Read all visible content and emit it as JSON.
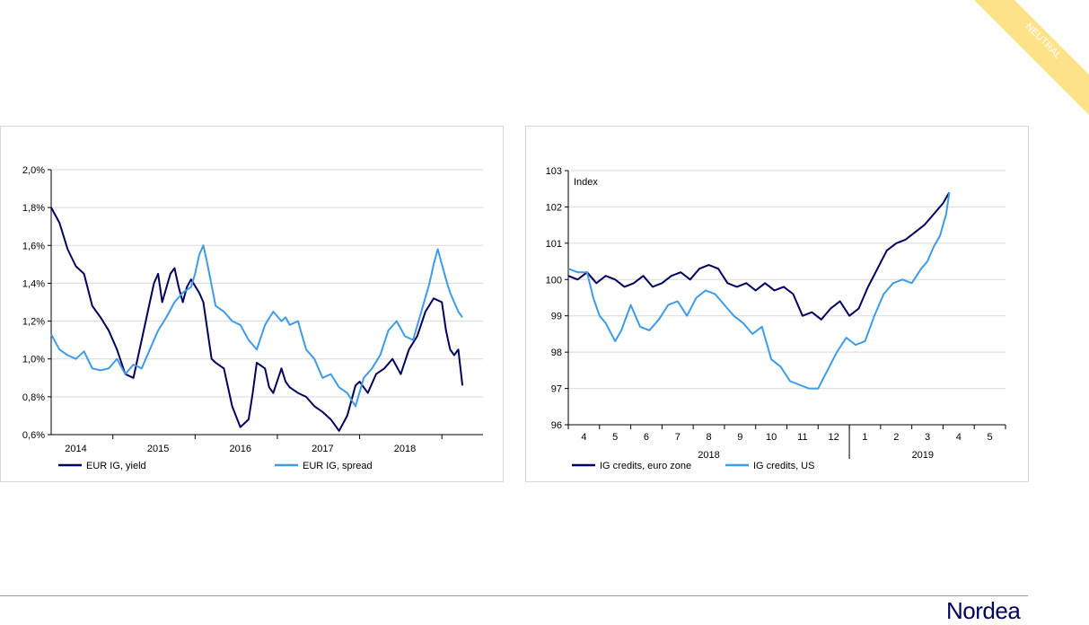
{
  "badge": {
    "text": "NEUTRAL",
    "color": "#ffe28a"
  },
  "logo": {
    "text": "Nordea",
    "color": "#00005e"
  },
  "colors": {
    "dark": "#00005e",
    "light": "#3f9be6",
    "grid": "#d9d9d9"
  },
  "chart_data": [
    {
      "type": "line",
      "title": "",
      "ylabel": "",
      "xlabel": "",
      "ylim": [
        0.6,
        2.0
      ],
      "y_ticks": [
        0.6,
        0.8,
        1.0,
        1.2,
        1.4,
        1.6,
        1.8,
        2.0
      ],
      "y_tick_labels": [
        "0,6%",
        "0,8%",
        "1,0%",
        "1,2%",
        "1,4%",
        "1,6%",
        "1,8%",
        "2,0%"
      ],
      "xlim": [
        2013.75,
        2019.0
      ],
      "x_tick_labels": [
        "2014",
        "2015",
        "2016",
        "2017",
        "2018"
      ],
      "grid": true,
      "legend": "bottom",
      "series": [
        {
          "name": "EUR IG, yield",
          "color": "#00005e",
          "x": [
            2013.75,
            2013.85,
            2013.95,
            2014.05,
            2014.15,
            2014.25,
            2014.35,
            2014.45,
            2014.55,
            2014.65,
            2014.75,
            2014.85,
            2014.95,
            2015.0,
            2015.05,
            2015.1,
            2015.2,
            2015.25,
            2015.3,
            2015.35,
            2015.4,
            2015.45,
            2015.55,
            2015.6,
            2015.65,
            2015.7,
            2015.75,
            2015.85,
            2015.95,
            2016.05,
            2016.1,
            2016.15,
            2016.2,
            2016.25,
            2016.35,
            2016.4,
            2016.45,
            2016.55,
            2016.6,
            2016.65,
            2016.75,
            2016.85,
            2016.95,
            2017.05,
            2017.15,
            2017.25,
            2017.35,
            2017.4,
            2017.45,
            2017.5,
            2017.55,
            2017.6,
            2017.7,
            2017.8,
            2017.9,
            2018.0,
            2018.1,
            2018.2,
            2018.3,
            2018.4,
            2018.5,
            2018.55,
            2018.6,
            2018.65,
            2018.7,
            2018.75
          ],
          "values": [
            1.8,
            1.72,
            1.58,
            1.49,
            1.45,
            1.28,
            1.22,
            1.15,
            1.05,
            0.92,
            0.9,
            1.1,
            1.3,
            1.4,
            1.45,
            1.3,
            1.45,
            1.48,
            1.38,
            1.3,
            1.38,
            1.42,
            1.35,
            1.3,
            1.15,
            1.0,
            0.98,
            0.95,
            0.75,
            0.64,
            0.66,
            0.68,
            0.82,
            0.98,
            0.95,
            0.85,
            0.82,
            0.95,
            0.88,
            0.85,
            0.82,
            0.8,
            0.75,
            0.72,
            0.68,
            0.62,
            0.7,
            0.78,
            0.86,
            0.88,
            0.85,
            0.82,
            0.92,
            0.95,
            1.0,
            0.92,
            1.05,
            1.12,
            1.25,
            1.32,
            1.3,
            1.15,
            1.05,
            1.02,
            1.05,
            0.86
          ]
        },
        {
          "name": "EUR IG, spread",
          "color": "#3f9be6",
          "x": [
            2013.75,
            2013.85,
            2013.95,
            2014.05,
            2014.15,
            2014.25,
            2014.35,
            2014.45,
            2014.55,
            2014.65,
            2014.75,
            2014.85,
            2014.95,
            2015.05,
            2015.15,
            2015.25,
            2015.35,
            2015.45,
            2015.5,
            2015.55,
            2015.6,
            2015.65,
            2015.75,
            2015.85,
            2015.95,
            2016.05,
            2016.15,
            2016.25,
            2016.35,
            2016.45,
            2016.55,
            2016.6,
            2016.65,
            2016.75,
            2016.85,
            2016.95,
            2017.05,
            2017.15,
            2017.25,
            2017.35,
            2017.45,
            2017.55,
            2017.65,
            2017.75,
            2017.85,
            2017.95,
            2018.05,
            2018.15,
            2018.25,
            2018.35,
            2018.4,
            2018.45,
            2018.55,
            2018.6,
            2018.65,
            2018.7,
            2018.75
          ],
          "values": [
            1.13,
            1.05,
            1.02,
            1.0,
            1.04,
            0.95,
            0.94,
            0.95,
            1.0,
            0.92,
            0.97,
            0.95,
            1.05,
            1.15,
            1.22,
            1.3,
            1.35,
            1.38,
            1.45,
            1.55,
            1.6,
            1.5,
            1.28,
            1.25,
            1.2,
            1.18,
            1.1,
            1.05,
            1.18,
            1.25,
            1.2,
            1.22,
            1.18,
            1.2,
            1.05,
            1.0,
            0.9,
            0.92,
            0.85,
            0.82,
            0.75,
            0.9,
            0.95,
            1.02,
            1.15,
            1.2,
            1.12,
            1.1,
            1.25,
            1.4,
            1.5,
            1.58,
            1.42,
            1.35,
            1.3,
            1.25,
            1.22
          ]
        }
      ]
    },
    {
      "type": "line",
      "title": "",
      "ylabel": "Index",
      "xlabel": "",
      "ylim": [
        96,
        103
      ],
      "y_ticks": [
        96,
        97,
        98,
        99,
        100,
        101,
        102,
        103
      ],
      "y_tick_labels": [
        "96",
        "97",
        "98",
        "99",
        "100",
        "101",
        "102",
        "103"
      ],
      "xlim": [
        3.5,
        17.5
      ],
      "x_tick_labels": [
        "4",
        "5",
        "6",
        "7",
        "8",
        "9",
        "10",
        "11",
        "12",
        "1",
        "2",
        "3",
        "4",
        "5"
      ],
      "year_labels": [
        "2018",
        "2019"
      ],
      "grid": true,
      "legend": "bottom",
      "series": [
        {
          "name": "IG credits, euro zone",
          "color": "#00005e",
          "x": [
            3.5,
            3.8,
            4.1,
            4.4,
            4.7,
            5.0,
            5.3,
            5.6,
            5.9,
            6.2,
            6.5,
            6.8,
            7.1,
            7.4,
            7.7,
            8.0,
            8.3,
            8.6,
            8.9,
            9.2,
            9.5,
            9.8,
            10.1,
            10.4,
            10.7,
            11.0,
            11.3,
            11.6,
            11.9,
            12.2,
            12.5,
            12.8,
            13.1,
            13.4,
            13.7,
            14.0,
            14.3,
            14.6,
            14.9,
            15.2,
            15.5,
            15.7
          ],
          "values": [
            100.1,
            100.0,
            100.2,
            99.9,
            100.1,
            100.0,
            99.8,
            99.9,
            100.1,
            99.8,
            99.9,
            100.1,
            100.2,
            100.0,
            100.3,
            100.4,
            100.3,
            99.9,
            99.8,
            99.9,
            99.7,
            99.9,
            99.7,
            99.8,
            99.6,
            99.0,
            99.1,
            98.9,
            99.2,
            99.4,
            99.0,
            99.2,
            99.8,
            100.3,
            100.8,
            101.0,
            101.1,
            101.3,
            101.5,
            101.8,
            102.1,
            102.4
          ]
        },
        {
          "name": "IG credits, US",
          "color": "#3f9be6",
          "x": [
            3.5,
            3.8,
            4.1,
            4.3,
            4.5,
            4.7,
            5.0,
            5.2,
            5.5,
            5.8,
            6.1,
            6.4,
            6.7,
            7.0,
            7.3,
            7.6,
            7.9,
            8.2,
            8.5,
            8.8,
            9.1,
            9.4,
            9.7,
            10.0,
            10.3,
            10.6,
            10.9,
            11.2,
            11.5,
            11.8,
            12.1,
            12.4,
            12.7,
            13.0,
            13.3,
            13.6,
            13.9,
            14.2,
            14.5,
            14.8,
            15.0,
            15.2,
            15.4,
            15.6,
            15.7
          ],
          "values": [
            100.3,
            100.2,
            100.2,
            99.5,
            99.0,
            98.8,
            98.3,
            98.6,
            99.3,
            98.7,
            98.6,
            98.9,
            99.3,
            99.4,
            99.0,
            99.5,
            99.7,
            99.6,
            99.3,
            99.0,
            98.8,
            98.5,
            98.7,
            97.8,
            97.6,
            97.2,
            97.1,
            97.0,
            97.0,
            97.5,
            98.0,
            98.4,
            98.2,
            98.3,
            99.0,
            99.6,
            99.9,
            100.0,
            99.9,
            100.3,
            100.5,
            100.9,
            101.2,
            101.8,
            102.4
          ]
        }
      ]
    }
  ]
}
